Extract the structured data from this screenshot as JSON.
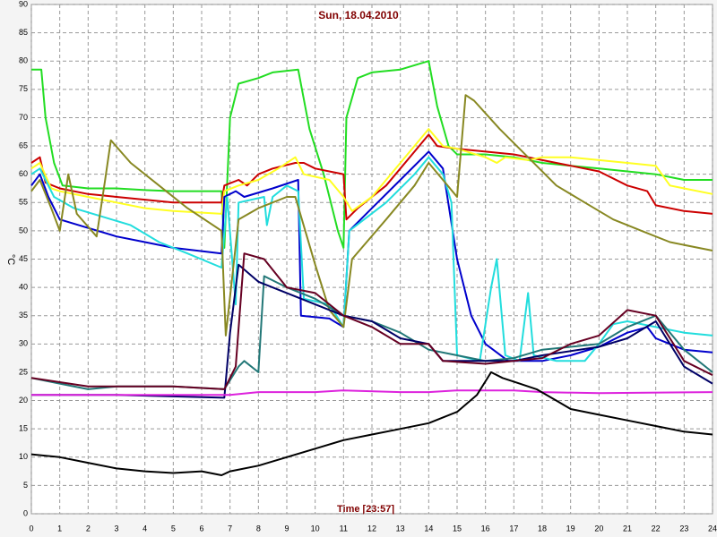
{
  "chart_data": {
    "type": "line",
    "title": "Sun, 18.04.2010",
    "xlabel": "Time [23:57]",
    "ylabel": "°C",
    "xlim": [
      0,
      24
    ],
    "xticks": [
      0,
      1,
      2,
      3,
      4,
      5,
      6,
      7,
      8,
      9,
      10,
      11,
      12,
      13,
      14,
      15,
      16,
      17,
      18,
      19,
      20,
      21,
      22,
      23,
      24
    ],
    "ylim": [
      0,
      90
    ],
    "yticks": [
      0,
      5,
      10,
      15,
      20,
      25,
      30,
      35,
      40,
      45,
      50,
      55,
      60,
      65,
      70,
      75,
      80,
      85,
      90
    ],
    "grid": true,
    "series": [
      {
        "color": "#22dd22",
        "x": [
          0,
          0.35,
          0.5,
          0.8,
          1.1,
          2,
          3,
          4,
          5,
          6.7,
          6.8,
          7.0,
          7.3,
          8,
          8.5,
          9.4,
          9.8,
          10.3,
          10.8,
          11,
          11.1,
          11.5,
          12,
          13,
          14,
          14.3,
          14.7,
          15,
          16,
          17,
          18,
          19,
          20,
          21,
          22,
          23,
          24
        ],
        "values": [
          78.5,
          78.5,
          70,
          62,
          58,
          57.5,
          57.5,
          57.2,
          57,
          57,
          47,
          70,
          76,
          77,
          78,
          78.5,
          68,
          60,
          50,
          47,
          70,
          77,
          78,
          78.5,
          80,
          72,
          65,
          63.5,
          63.5,
          63,
          62,
          61.5,
          61,
          60.5,
          60,
          59,
          59
        ]
      },
      {
        "color": "#cc0000",
        "x": [
          0,
          0.3,
          0.5,
          1,
          2,
          3,
          4,
          5,
          6.7,
          6.8,
          7.3,
          7.6,
          8,
          8.5,
          9.3,
          9.6,
          10,
          11,
          11.1,
          11.5,
          12.5,
          13.5,
          14,
          14.3,
          15,
          16,
          17,
          18,
          19,
          20,
          21,
          21.7,
          22,
          23,
          24
        ],
        "values": [
          62,
          63,
          58.5,
          57.5,
          56.5,
          56,
          55.5,
          55,
          55,
          58,
          59,
          58,
          60,
          61,
          62,
          62,
          61,
          60,
          52,
          54,
          58,
          64,
          67,
          65,
          64.5,
          64,
          63.5,
          62.5,
          61.5,
          60.5,
          58,
          57,
          54.5,
          53.5,
          53
        ]
      },
      {
        "color": "#ffff22",
        "x": [
          0,
          0.3,
          0.7,
          1,
          2,
          3,
          4,
          5,
          6.7,
          6.8,
          7.3,
          8,
          8.7,
          9.3,
          9.6,
          10.5,
          11,
          11.3,
          12,
          13,
          14,
          14.5,
          15,
          16,
          16.4,
          16.7,
          17.5,
          18,
          19,
          20,
          21,
          22,
          22.5,
          23,
          24
        ],
        "values": [
          61,
          62,
          57.5,
          57,
          56,
          55,
          54,
          53.5,
          53,
          57,
          58,
          59,
          61,
          63,
          60,
          59,
          56,
          53.5,
          56,
          62,
          68,
          65,
          64.5,
          63,
          62,
          63,
          62.5,
          63,
          63,
          62.5,
          62,
          61.5,
          58,
          57.5,
          56.5
        ]
      },
      {
        "color": "#0000cc",
        "x": [
          0,
          0.3,
          0.6,
          1,
          2,
          3,
          4,
          5,
          6.7,
          6.8,
          7.2,
          7.5,
          8.5,
          9.4,
          9.5,
          10.5,
          11,
          11.2,
          12,
          13,
          14,
          14.5,
          15,
          15.5,
          16,
          16.8,
          18,
          19,
          20,
          21,
          21.7,
          22,
          23,
          24
        ],
        "values": [
          58,
          60,
          56,
          52,
          50.5,
          49,
          48,
          47,
          46,
          56,
          57,
          56,
          57.5,
          59,
          35,
          34.5,
          33,
          50,
          54,
          59,
          64,
          61,
          45,
          35,
          30,
          27,
          27,
          28,
          29.5,
          32,
          33,
          31,
          29,
          28.5
        ]
      },
      {
        "color": "#22dddd",
        "x": [
          0,
          0.3,
          0.8,
          1.5,
          2.5,
          3.5,
          4.5,
          5.5,
          6.7,
          6.9,
          7.2,
          7.3,
          8.2,
          8.3,
          8.5,
          9,
          9.4,
          9.6,
          10.5,
          11,
          11.2,
          12.5,
          13.5,
          14,
          14.5,
          14.8,
          15,
          15.8,
          16.2,
          16.4,
          16.7,
          17.2,
          17.5,
          17.7,
          18.5,
          19.5,
          20,
          20.5,
          21,
          22,
          23,
          24
        ],
        "values": [
          60,
          61,
          56,
          54,
          52.5,
          51,
          48,
          46,
          43.5,
          56,
          37,
          55,
          56,
          51,
          56,
          58,
          57,
          38,
          37,
          33,
          50,
          55,
          60,
          63,
          60,
          55,
          28,
          27,
          40,
          45,
          28,
          27,
          39,
          28,
          27,
          27,
          30,
          33.5,
          34,
          33,
          32,
          31.5
        ]
      },
      {
        "color": "#888822",
        "x": [
          0,
          0.3,
          0.7,
          1,
          1.3,
          1.6,
          2.3,
          2.6,
          2.8,
          3.5,
          4.5,
          5.5,
          6.7,
          6.85,
          7.3,
          8,
          9,
          9.3,
          10,
          10.5,
          11,
          11.3,
          12.5,
          13.5,
          14,
          14.5,
          15,
          15.3,
          15.6,
          16.5,
          17.5,
          18.5,
          19.5,
          20.5,
          21.5,
          22.5,
          23.5,
          24
        ],
        "values": [
          57,
          59,
          54,
          50,
          60,
          53,
          49,
          59,
          66,
          62,
          58,
          54,
          50,
          31.5,
          52,
          54,
          56,
          56,
          44,
          36,
          33,
          45,
          52,
          58,
          62,
          59,
          56,
          74,
          73,
          68,
          63,
          58,
          55,
          52,
          50,
          48,
          47,
          46.5
        ]
      },
      {
        "color": "#227777",
        "x": [
          0,
          1,
          2,
          3,
          5,
          6.8,
          7.3,
          7.5,
          8,
          8.2,
          9,
          10,
          11,
          12,
          13,
          14,
          15,
          16,
          17,
          18,
          19,
          20,
          21,
          22,
          23,
          24
        ],
        "values": [
          24,
          23,
          22,
          22.5,
          22.5,
          22,
          26,
          27,
          25,
          42,
          40,
          38,
          35,
          34,
          32,
          29,
          28,
          27,
          27.5,
          29,
          29.5,
          30,
          33,
          35,
          29,
          25
        ]
      },
      {
        "color": "#000066",
        "x": [
          0,
          3,
          6.8,
          7,
          7.3,
          8,
          9,
          10,
          11,
          12,
          13,
          14,
          14.5,
          16,
          17,
          18,
          20,
          21,
          22,
          23,
          24
        ],
        "values": [
          21,
          21,
          20.5,
          32,
          44,
          41,
          39,
          37,
          35,
          34,
          31,
          30,
          27,
          27,
          27,
          28,
          29.5,
          31,
          34,
          26,
          23
        ]
      },
      {
        "color": "#660022",
        "x": [
          0,
          2,
          5,
          6.8,
          7.2,
          7.5,
          8.2,
          9,
          10,
          11,
          12,
          13,
          14,
          14.5,
          16,
          17,
          18,
          19,
          20,
          21,
          22,
          23,
          24
        ],
        "values": [
          24,
          22.5,
          22.5,
          22,
          26,
          46,
          45,
          40,
          39,
          35,
          33,
          30,
          30,
          27,
          26.5,
          27,
          27.5,
          30,
          31.5,
          36,
          35,
          27,
          24.5
        ]
      },
      {
        "color": "#dd22dd",
        "x": [
          0,
          6.9,
          7,
          8,
          9.5,
          10,
          11,
          13,
          14,
          15,
          17,
          18,
          20,
          24
        ],
        "values": [
          21,
          21,
          21,
          21.5,
          21.5,
          21.5,
          21.8,
          21.5,
          21.5,
          21.8,
          21.8,
          21.5,
          21.3,
          21.5
        ]
      },
      {
        "color": "#000000",
        "x": [
          0,
          1,
          2,
          3,
          4,
          5,
          6,
          6.7,
          7,
          8,
          9,
          10,
          11,
          12,
          13,
          14,
          15,
          15.7,
          16.2,
          16.6,
          17.2,
          17.8,
          18.5,
          19,
          20,
          21,
          22,
          23,
          24
        ],
        "values": [
          10.5,
          10,
          9,
          8,
          7.5,
          7.2,
          7.5,
          6.8,
          7.5,
          8.5,
          10,
          11.5,
          13,
          14,
          15,
          16,
          18,
          21,
          25,
          24,
          23,
          22,
          20,
          18.5,
          17.5,
          16.5,
          15.5,
          14.5,
          14
        ]
      }
    ]
  }
}
